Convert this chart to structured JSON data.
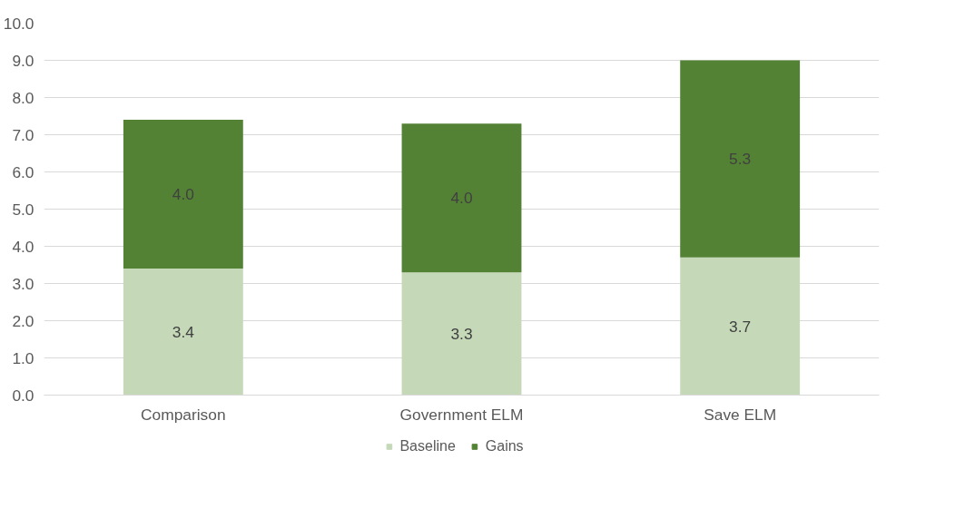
{
  "chart_data": {
    "type": "bar",
    "stacked": true,
    "categories": [
      "Comparison",
      "Government ELM",
      "Save ELM"
    ],
    "series": [
      {
        "name": "Baseline",
        "color": "#c5d9b9",
        "values": [
          3.4,
          3.3,
          3.7
        ],
        "value_labels": [
          "3.4",
          "3.3",
          "3.7"
        ]
      },
      {
        "name": "Gains",
        "color": "#548235",
        "values": [
          4.0,
          4.0,
          5.3
        ],
        "value_labels": [
          "4.0",
          "4.0",
          "5.3"
        ]
      }
    ],
    "ylim": [
      0,
      10
    ],
    "yticks": [
      {
        "value": 0,
        "label": "0.0"
      },
      {
        "value": 1,
        "label": "1.0"
      },
      {
        "value": 2,
        "label": "2.0"
      },
      {
        "value": 3,
        "label": "3.0"
      },
      {
        "value": 4,
        "label": "4.0"
      },
      {
        "value": 5,
        "label": "5.0"
      },
      {
        "value": 6,
        "label": "6.0"
      },
      {
        "value": 7,
        "label": "7.0"
      },
      {
        "value": 8,
        "label": "8.0"
      },
      {
        "value": 9,
        "label": "9.0"
      },
      {
        "value": 10,
        "label": "10.0"
      }
    ],
    "grid": "y",
    "legend": "bottom"
  }
}
